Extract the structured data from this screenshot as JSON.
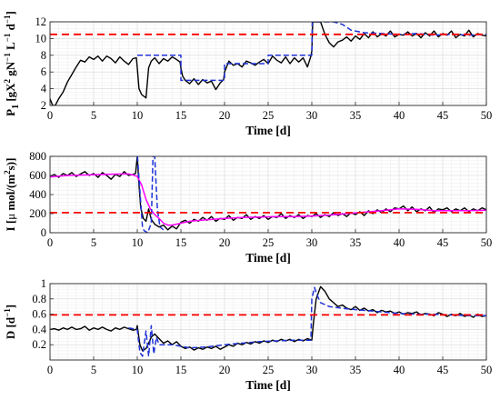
{
  "chart_data": [
    {
      "type": "line",
      "title": "",
      "xlabel": "Time [d]",
      "ylabel": "P1 [gX2 gN-1 L-1 d-1]",
      "ylabel_parts": {
        "main": "P",
        "sub": "1",
        "unit_open": " [gX",
        "unit_exp1": "2",
        "unit_mid": " gN",
        "unit_exp2": "−1",
        "unit_mid2": " L",
        "unit_exp3": "−1",
        "unit_mid3": " d",
        "unit_exp4": "−1",
        "unit_close": "]"
      },
      "xlim": [
        0,
        50
      ],
      "ylim": [
        2,
        12
      ],
      "xticks": [
        0,
        5,
        10,
        15,
        20,
        25,
        30,
        35,
        40,
        45,
        50
      ],
      "yticks": [
        2,
        4,
        6,
        8,
        10,
        12
      ],
      "grid": true,
      "legend": "none",
      "series": [
        {
          "color": "#000000",
          "style": "solid",
          "x": [
            0,
            0.3,
            0.6,
            1,
            1.5,
            2,
            2.5,
            3,
            3.5,
            4,
            4.5,
            5,
            5.5,
            6,
            6.5,
            7,
            7.5,
            8,
            8.5,
            9,
            9.5,
            9.9,
            10,
            10.2,
            10.5,
            11,
            11.3,
            11.6,
            12,
            12.5,
            13,
            13.5,
            14,
            14.5,
            14.9,
            15,
            15.2,
            15.5,
            16,
            16.5,
            17,
            17.5,
            18,
            18.5,
            19,
            19.5,
            19.9,
            20,
            20.5,
            21,
            21.5,
            22,
            22.5,
            23,
            23.5,
            24,
            24.5,
            25,
            25.5,
            26,
            26.5,
            27,
            27.5,
            28,
            28.5,
            29,
            29.5,
            29.9,
            30,
            30.1,
            30.3,
            30.6,
            31,
            31.5,
            32,
            32.5,
            33,
            33.5,
            34,
            34.5,
            35,
            35.5,
            36,
            36.5,
            37,
            37.5,
            38,
            38.5,
            39,
            39.5,
            40,
            40.5,
            41,
            41.5,
            42,
            42.5,
            43,
            43.5,
            44,
            44.5,
            45,
            45.5,
            46,
            46.5,
            47,
            47.5,
            48,
            48.5,
            49,
            49.5,
            50
          ],
          "y": [
            2.8,
            2.0,
            2.0,
            2.8,
            3.6,
            4.8,
            5.7,
            6.6,
            7.4,
            7.2,
            7.8,
            7.5,
            7.9,
            7.3,
            7.9,
            7.6,
            7.1,
            7.8,
            7.3,
            6.9,
            7.6,
            7.7,
            6.5,
            4.0,
            3.3,
            2.9,
            6.5,
            7.3,
            7.7,
            7.0,
            7.6,
            7.3,
            7.8,
            7.5,
            7.2,
            6.5,
            5.5,
            5.0,
            4.6,
            5.2,
            4.5,
            5.1,
            4.7,
            4.9,
            3.9,
            4.7,
            5.1,
            6.0,
            7.3,
            6.8,
            7.0,
            6.6,
            7.3,
            7.1,
            6.8,
            7.2,
            7.5,
            7.0,
            7.9,
            7.4,
            7.1,
            7.8,
            7.0,
            7.7,
            7.2,
            7.7,
            6.6,
            7.9,
            8.5,
            12.0,
            12.0,
            12.0,
            12.0,
            10.5,
            9.5,
            9.0,
            9.6,
            9.8,
            10.2,
            9.7,
            10.3,
            9.9,
            10.6,
            10.1,
            10.8,
            10.2,
            10.6,
            10.3,
            10.9,
            10.2,
            10.5,
            10.4,
            10.8,
            10.3,
            10.6,
            10.1,
            10.7,
            10.3,
            10.9,
            10.2,
            10.6,
            10.4,
            10.9,
            10.1,
            10.5,
            10.3,
            11.0,
            10.2,
            10.6,
            10.4,
            10.3
          ]
        },
        {
          "color": "#1f32d6",
          "style": "dashed",
          "x": [
            10,
            10.02,
            11.5,
            11.5,
            15,
            15,
            20,
            20,
            25,
            25,
            30,
            30.05,
            31.5,
            32.5,
            33.5,
            34.5,
            36,
            38,
            40,
            42,
            44,
            46,
            48,
            50
          ],
          "y": [
            8.0,
            8.0,
            8.0,
            8.0,
            8.0,
            5.0,
            5.0,
            7.0,
            7.0,
            8.0,
            8.0,
            12.0,
            12.0,
            12.0,
            11.7,
            11.0,
            10.7,
            10.6,
            10.5,
            10.6,
            10.4,
            10.5,
            10.4,
            10.5
          ]
        },
        {
          "color": "#ff0000",
          "style": "dashed",
          "x": [
            0,
            50
          ],
          "y": [
            10.5,
            10.5
          ]
        }
      ]
    },
    {
      "type": "line",
      "title": "",
      "xlabel": "Time [d]",
      "ylabel": "I [μ mol/(m2s)]",
      "ylabel_parts": {
        "main": "I [",
        "mu": "μ",
        "rest": " mol/(m",
        "exp": "2",
        "close": "s)]"
      },
      "xlim": [
        0,
        50
      ],
      "ylim": [
        0,
        800
      ],
      "xticks": [
        0,
        5,
        10,
        15,
        20,
        25,
        30,
        35,
        40,
        45,
        50
      ],
      "yticks": [
        0,
        200,
        400,
        600,
        800
      ],
      "grid": true,
      "legend": "none",
      "series": [
        {
          "color": "#000000",
          "style": "solid",
          "x": [
            0,
            0.5,
            1,
            1.5,
            2,
            2.5,
            3,
            3.5,
            4,
            4.5,
            5,
            5.5,
            6,
            6.5,
            7,
            7.5,
            8,
            8.5,
            9,
            9.5,
            9.8,
            10,
            10.2,
            10.4,
            10.7,
            11,
            11.3,
            11.6,
            12,
            12.5,
            13,
            13.5,
            14,
            14.5,
            15,
            15.5,
            16,
            16.5,
            17,
            17.5,
            18,
            18.5,
            19,
            19.5,
            20,
            20.5,
            21,
            21.5,
            22,
            22.5,
            23,
            23.5,
            24,
            24.5,
            25,
            25.5,
            26,
            26.5,
            27,
            27.5,
            28,
            28.5,
            29,
            29.5,
            30,
            30.5,
            31,
            31.5,
            32,
            32.5,
            33,
            33.5,
            34,
            34.5,
            35,
            35.5,
            36,
            36.5,
            37,
            37.5,
            38,
            38.5,
            39,
            39.5,
            40,
            40.5,
            41,
            41.5,
            42,
            42.5,
            43,
            43.5,
            44,
            44.5,
            45,
            45.5,
            46,
            46.5,
            47,
            47.5,
            48,
            48.5,
            49,
            49.5,
            50
          ],
          "y": [
            590,
            610,
            580,
            620,
            600,
            630,
            590,
            615,
            640,
            600,
            620,
            580,
            630,
            600,
            560,
            610,
            590,
            640,
            600,
            610,
            620,
            800,
            500,
            260,
            150,
            120,
            250,
            140,
            90,
            60,
            80,
            30,
            70,
            40,
            110,
            130,
            100,
            140,
            120,
            160,
            130,
            170,
            120,
            150,
            140,
            180,
            130,
            160,
            150,
            190,
            140,
            170,
            150,
            180,
            140,
            170,
            160,
            200,
            150,
            180,
            160,
            190,
            150,
            180,
            170,
            200,
            160,
            190,
            170,
            210,
            180,
            200,
            170,
            210,
            190,
            220,
            180,
            230,
            200,
            240,
            210,
            250,
            220,
            260,
            250,
            280,
            230,
            270,
            220,
            250,
            230,
            270,
            210,
            250,
            240,
            260,
            220,
            250,
            230,
            260,
            220,
            250,
            230,
            260,
            240
          ]
        },
        {
          "color": "#ff00ff",
          "style": "solid",
          "x": [
            0,
            2,
            4,
            6,
            8,
            9,
            9.5,
            10,
            10.5,
            11,
            11.5,
            12,
            12.5,
            13,
            13.5,
            14,
            15,
            16,
            18,
            20,
            22,
            24,
            26,
            28,
            30,
            32,
            34,
            36,
            38,
            40,
            42,
            44,
            46,
            48,
            50
          ],
          "y": [
            585,
            600,
            605,
            610,
            615,
            615,
            605,
            590,
            500,
            350,
            250,
            190,
            150,
            100,
            80,
            80,
            100,
            120,
            135,
            150,
            160,
            165,
            170,
            170,
            175,
            185,
            200,
            215,
            230,
            250,
            245,
            230,
            230,
            230,
            235
          ]
        },
        {
          "color": "#1f32d6",
          "style": "dashed",
          "x": [
            10,
            10.02,
            10.6,
            10.8,
            11.2,
            11.6,
            11.8,
            12.0,
            12.3,
            12.6,
            13
          ],
          "y": [
            800,
            800,
            50,
            20,
            0,
            100,
            800,
            800,
            250,
            60,
            30
          ]
        },
        {
          "color": "#ff0000",
          "style": "dashed",
          "x": [
            0,
            50
          ],
          "y": [
            210,
            210
          ]
        }
      ]
    },
    {
      "type": "line",
      "title": "",
      "xlabel": "Time [d]",
      "ylabel": "D [d-1]",
      "ylabel_parts": {
        "main": "D [d",
        "exp": "−1",
        "close": "]"
      },
      "xlim": [
        0,
        50
      ],
      "ylim": [
        0,
        1
      ],
      "xticks": [
        0,
        5,
        10,
        15,
        20,
        25,
        30,
        35,
        40,
        45,
        50
      ],
      "yticks": [
        0.2,
        0.4,
        0.6,
        0.8,
        1
      ],
      "ytick_labels": [
        "0.2",
        "0.4",
        "0.6",
        "0.8",
        "1"
      ],
      "grid": true,
      "legend": "none",
      "series": [
        {
          "color": "#000000",
          "style": "solid",
          "x": [
            0,
            0.5,
            1,
            1.5,
            2,
            2.5,
            3,
            3.5,
            4,
            4.5,
            5,
            5.5,
            6,
            6.5,
            7,
            7.5,
            8,
            8.5,
            9,
            9.5,
            9.9,
            10,
            10.3,
            10.6,
            11,
            11.3,
            11.6,
            12,
            12.5,
            13,
            13.5,
            14,
            14.5,
            15,
            15.5,
            16,
            16.5,
            17,
            17.5,
            18,
            18.5,
            19,
            19.5,
            20,
            20.5,
            21,
            21.5,
            22,
            22.5,
            23,
            23.5,
            24,
            24.5,
            25,
            25.5,
            26,
            26.5,
            27,
            27.5,
            28,
            28.5,
            29,
            29.5,
            30,
            30.2,
            30.5,
            31,
            31.5,
            32,
            32.5,
            33,
            33.5,
            34,
            34.5,
            35,
            35.5,
            36,
            36.5,
            37,
            37.5,
            38,
            38.5,
            39,
            39.5,
            40,
            40.5,
            41,
            41.5,
            42,
            42.5,
            43,
            43.5,
            44,
            44.5,
            45,
            45.5,
            46,
            46.5,
            47,
            47.5,
            48,
            48.5,
            49,
            49.5,
            50
          ],
          "y": [
            0.4,
            0.41,
            0.39,
            0.42,
            0.4,
            0.43,
            0.4,
            0.41,
            0.44,
            0.39,
            0.42,
            0.4,
            0.43,
            0.4,
            0.38,
            0.42,
            0.4,
            0.43,
            0.41,
            0.39,
            0.4,
            0.45,
            0.2,
            0.12,
            0.15,
            0.22,
            0.3,
            0.34,
            0.28,
            0.22,
            0.25,
            0.2,
            0.24,
            0.18,
            0.15,
            0.17,
            0.13,
            0.16,
            0.14,
            0.17,
            0.15,
            0.18,
            0.14,
            0.17,
            0.2,
            0.18,
            0.22,
            0.2,
            0.23,
            0.21,
            0.24,
            0.22,
            0.25,
            0.23,
            0.26,
            0.24,
            0.27,
            0.25,
            0.27,
            0.24,
            0.27,
            0.25,
            0.28,
            0.26,
            0.5,
            0.8,
            0.96,
            0.9,
            0.8,
            0.75,
            0.7,
            0.72,
            0.68,
            0.66,
            0.7,
            0.65,
            0.68,
            0.64,
            0.66,
            0.62,
            0.65,
            0.63,
            0.64,
            0.61,
            0.63,
            0.6,
            0.62,
            0.61,
            0.63,
            0.59,
            0.61,
            0.6,
            0.58,
            0.62,
            0.6,
            0.57,
            0.6,
            0.58,
            0.61,
            0.57,
            0.59,
            0.56,
            0.6,
            0.57,
            0.58
          ]
        },
        {
          "color": "#1f32d6",
          "style": "dashed",
          "x": [
            9,
            10,
            10.3,
            10.6,
            11,
            11.3,
            11.6,
            11.9,
            12.2,
            12.5,
            13,
            14,
            15,
            16,
            18,
            20,
            22,
            24,
            26,
            28,
            29.9,
            30,
            30.3,
            30.6,
            31,
            32,
            34,
            36,
            38,
            40,
            42,
            44,
            46,
            48,
            50
          ],
          "y": [
            0.42,
            0.4,
            0.1,
            0.05,
            0.38,
            0.05,
            0.45,
            0.08,
            0.3,
            0.2,
            0.2,
            0.2,
            0.18,
            0.16,
            0.17,
            0.2,
            0.22,
            0.24,
            0.25,
            0.26,
            0.26,
            0.8,
            0.95,
            0.85,
            0.75,
            0.7,
            0.67,
            0.65,
            0.63,
            0.61,
            0.6,
            0.6,
            0.59,
            0.58,
            0.58
          ]
        },
        {
          "color": "#ff0000",
          "style": "dashed",
          "x": [
            0,
            50
          ],
          "y": [
            0.59,
            0.59
          ]
        }
      ]
    }
  ]
}
